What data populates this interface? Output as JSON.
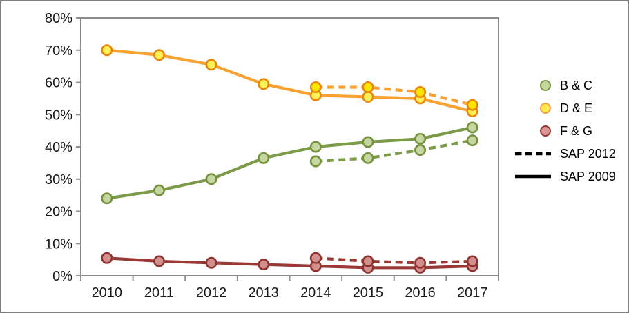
{
  "frame": {
    "background": "#FFFFFF",
    "border_color": "#7F7F7F"
  },
  "chart_data": {
    "type": "line",
    "title": "",
    "xlabel": "",
    "ylabel": "",
    "x": [
      "2010",
      "2011",
      "2012",
      "2013",
      "2014",
      "2015",
      "2016",
      "2017"
    ],
    "ylim": [
      0,
      80
    ],
    "ytick_step": 10,
    "ytick_labels": [
      "0%",
      "10%",
      "20%",
      "30%",
      "40%",
      "50%",
      "60%",
      "70%",
      "80%"
    ],
    "grid": false,
    "axis_color": "#8C8C8C",
    "text_color": "#1A1A1A",
    "series": [
      {
        "name": "B & C (SAP 2009)",
        "group": "B & C",
        "variant": "SAP 2009",
        "dash": false,
        "line_color": "#7C9A48",
        "marker_fill": "#C5D6A0",
        "marker_stroke": "#76923C",
        "values": [
          24,
          26.5,
          30,
          36.5,
          40,
          41.5,
          42.5,
          46
        ]
      },
      {
        "name": "D & E (SAP 2009)",
        "group": "D & E",
        "variant": "SAP 2009",
        "dash": false,
        "line_color": "#F9A232",
        "marker_fill": "#FFF155",
        "marker_stroke": "#E88609",
        "values": [
          70,
          68.5,
          65.5,
          59.5,
          56,
          55.5,
          55,
          51
        ]
      },
      {
        "name": "F & G (SAP 2009)",
        "group": "F & G",
        "variant": "SAP 2009",
        "dash": false,
        "line_color": "#9A3835",
        "marker_fill": "#D1908D",
        "marker_stroke": "#8E3330",
        "values": [
          5.5,
          4.5,
          4,
          3.5,
          3,
          2.5,
          2.5,
          3
        ]
      },
      {
        "name": "B & C (SAP 2012)",
        "group": "B & C",
        "variant": "SAP 2012",
        "dash": true,
        "line_color": "#7C9A48",
        "marker_fill": "#C5D6A0",
        "marker_stroke": "#76923C",
        "values": [
          null,
          null,
          null,
          null,
          35.5,
          36.5,
          39,
          42
        ]
      },
      {
        "name": "D & E (SAP 2012)",
        "group": "D & E",
        "variant": "SAP 2012",
        "dash": true,
        "line_color": "#F9A232",
        "marker_fill": "#FFE400",
        "marker_stroke": "#E88609",
        "values": [
          null,
          null,
          null,
          null,
          58.5,
          58.5,
          57,
          53
        ]
      },
      {
        "name": "F & G (SAP 2012)",
        "group": "F & G",
        "variant": "SAP 2012",
        "dash": true,
        "line_color": "#9A3835",
        "marker_fill": "#D1908D",
        "marker_stroke": "#8E3330",
        "values": [
          null,
          null,
          null,
          null,
          5.5,
          4.5,
          4,
          4.5
        ]
      }
    ],
    "legend": {
      "position": "right",
      "items": [
        {
          "label": "B & C",
          "marker": "circle",
          "fill": "#C5D6A0",
          "stroke": "#76923C"
        },
        {
          "label": "D & E",
          "marker": "circle",
          "fill": "#FFE94D",
          "stroke": "#F0A243"
        },
        {
          "label": "F & G",
          "marker": "circle",
          "fill": "#D99694",
          "stroke": "#953735"
        },
        {
          "label": "SAP 2012",
          "marker": "line",
          "dash": true,
          "color": "#000000"
        },
        {
          "label": "SAP 2009",
          "marker": "line",
          "dash": false,
          "color": "#000000"
        }
      ]
    }
  }
}
